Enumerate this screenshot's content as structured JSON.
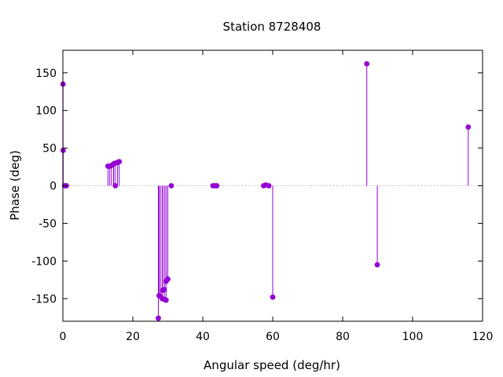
{
  "chart_data": {
    "type": "scatter",
    "style": "impulses-with-points",
    "title": "Station 8728408",
    "xlabel": "Angular speed (deg/hr)",
    "ylabel": "Phase (deg)",
    "xlim": [
      0,
      120
    ],
    "ylim": [
      -180,
      180
    ],
    "xticks": [
      0,
      20,
      40,
      60,
      80,
      100,
      120
    ],
    "yticks": [
      -150,
      -100,
      -50,
      0,
      50,
      100,
      150
    ],
    "grid": false,
    "zero_line": "dotted",
    "color": "#9400d3",
    "series": [
      {
        "points": [
          [
            0.04,
            135
          ],
          [
            0.08,
            47
          ],
          [
            0.5,
            0
          ],
          [
            1.0,
            0
          ],
          [
            12.9,
            26
          ],
          [
            13.4,
            26
          ],
          [
            13.9,
            27
          ],
          [
            14.5,
            29
          ],
          [
            14.9,
            30
          ],
          [
            15.0,
            0
          ],
          [
            15.6,
            31
          ],
          [
            16.1,
            32
          ],
          [
            27.3,
            -176
          ],
          [
            27.5,
            -146
          ],
          [
            27.9,
            -147
          ],
          [
            28.4,
            -150
          ],
          [
            28.5,
            -139
          ],
          [
            29.0,
            -138
          ],
          [
            29.0,
            -151
          ],
          [
            29.5,
            -152
          ],
          [
            29.5,
            -127
          ],
          [
            30.0,
            -124
          ],
          [
            31.0,
            0
          ],
          [
            42.9,
            0
          ],
          [
            43.5,
            0
          ],
          [
            44.0,
            0
          ],
          [
            57.4,
            0
          ],
          [
            58.0,
            1
          ],
          [
            58.9,
            0
          ],
          [
            60.0,
            -148
          ],
          [
            86.9,
            162
          ],
          [
            89.9,
            -105
          ],
          [
            115.9,
            78
          ]
        ]
      }
    ]
  }
}
